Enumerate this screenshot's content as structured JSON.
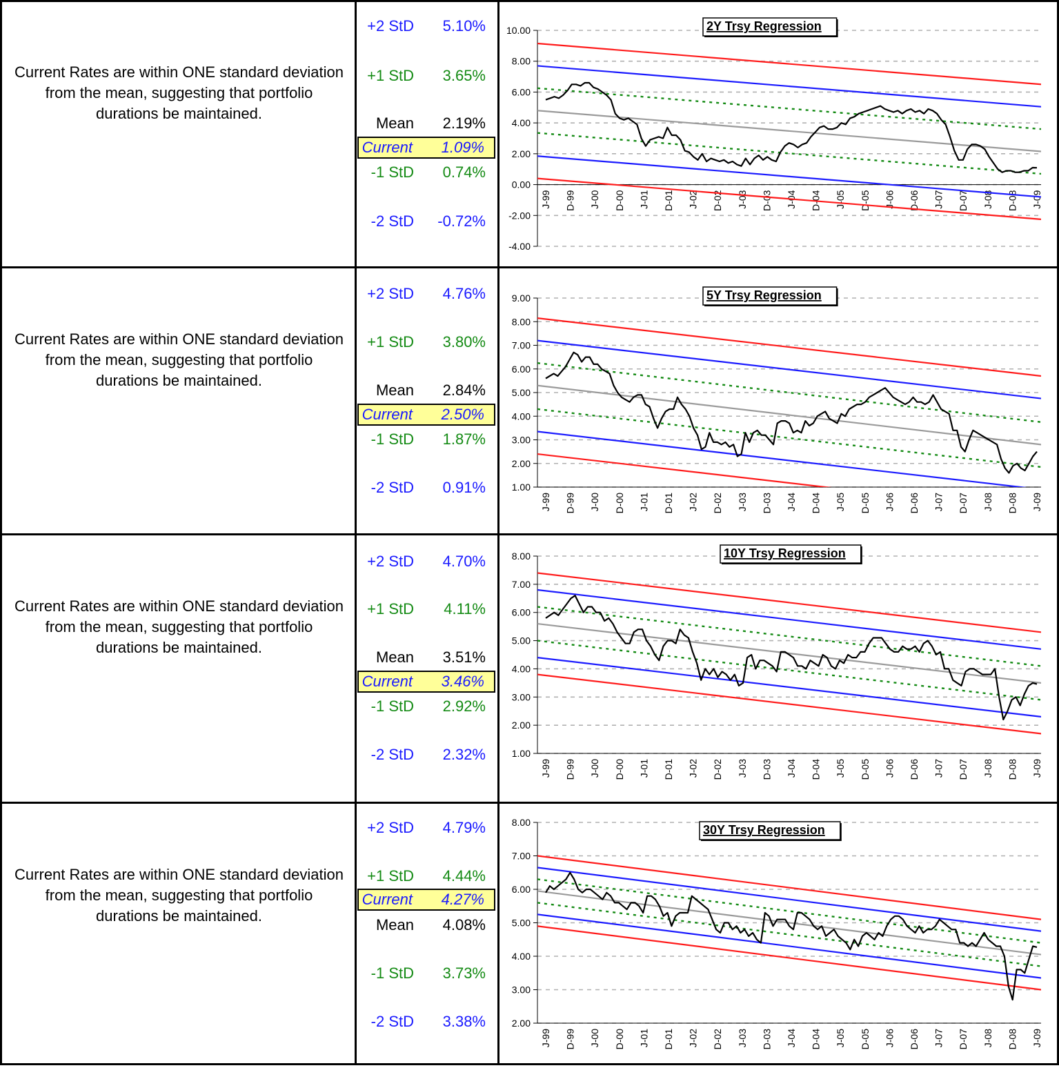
{
  "charts": [
    {
      "comment": "Current Rates are within ONE standard deviation from the mean, suggesting that portfolio durations be maintained.",
      "stats": [
        {
          "label": "+2 StD",
          "value": "5.10%",
          "color": "#1a1aff"
        },
        {
          "label": "+1 StD",
          "value": "3.65%",
          "color": "#138a13"
        },
        {
          "label": "Mean",
          "value": "2.19%",
          "color": "#000000"
        },
        {
          "label": "Current",
          "value": "1.09%",
          "color": "#1a1aff",
          "current": true
        },
        {
          "label": "-1 StD",
          "value": "0.74%",
          "color": "#138a13"
        },
        {
          "label": "-2 StD",
          "value": "-0.72%",
          "color": "#1a1aff"
        }
      ],
      "chart_data": {
        "type": "line",
        "title": "2Y Trsy Regression",
        "ylim": [
          -4,
          10
        ],
        "yticks": [
          "10.00",
          "8.00",
          "6.00",
          "4.00",
          "2.00",
          "0.00",
          "-2.00",
          "-4.00"
        ],
        "xtick_labels": [
          "J-99",
          "D-99",
          "J-00",
          "D-00",
          "J-01",
          "D-01",
          "J-02",
          "D-02",
          "J-03",
          "D-03",
          "J-04",
          "D-04",
          "J-05",
          "D-05",
          "J-06",
          "D-06",
          "J-07",
          "D-07",
          "J-08",
          "D-08",
          "J-09"
        ],
        "x_labels_inside": true,
        "grid": true,
        "bands": {
          "mean": [
            4.8,
            2.15
          ],
          "plus1": [
            6.25,
            3.6
          ],
          "minus1": [
            3.35,
            0.7
          ],
          "plus2": [
            7.7,
            5.05
          ],
          "minus2": [
            1.85,
            -0.8
          ],
          "plus3": [
            9.15,
            6.5
          ],
          "minus3": [
            0.4,
            -2.25
          ]
        },
        "values": [
          5.5,
          5.6,
          5.7,
          5.6,
          5.8,
          6.1,
          6.5,
          6.5,
          6.4,
          6.6,
          6.6,
          6.3,
          6.2,
          6.0,
          5.8,
          5.5,
          4.6,
          4.3,
          4.2,
          4.3,
          4.1,
          3.9,
          3.0,
          2.5,
          2.9,
          3.0,
          3.1,
          3.0,
          3.7,
          3.2,
          3.2,
          2.9,
          2.2,
          2.1,
          1.8,
          1.6,
          2.0,
          1.5,
          1.7,
          1.6,
          1.5,
          1.6,
          1.4,
          1.5,
          1.3,
          1.2,
          1.7,
          1.3,
          1.7,
          1.9,
          1.6,
          1.8,
          1.6,
          1.5,
          2.1,
          2.5,
          2.7,
          2.6,
          2.4,
          2.6,
          2.7,
          3.1,
          3.4,
          3.7,
          3.8,
          3.6,
          3.6,
          3.7,
          4.0,
          3.9,
          4.3,
          4.4,
          4.6,
          4.7,
          4.8,
          4.9,
          5.0,
          5.1,
          4.9,
          4.8,
          4.7,
          4.8,
          4.6,
          4.8,
          4.9,
          4.7,
          4.8,
          4.6,
          4.9,
          4.8,
          4.6,
          4.2,
          3.9,
          3.1,
          2.2,
          1.6,
          1.6,
          2.3,
          2.6,
          2.6,
          2.5,
          2.3,
          1.8,
          1.4,
          1.0,
          0.8,
          0.9,
          0.9,
          0.8,
          0.8,
          0.9,
          0.9,
          1.1,
          1.09
        ]
      }
    },
    {
      "comment": "Current Rates are within ONE standard deviation from the mean, suggesting that portfolio durations be maintained.",
      "stats": [
        {
          "label": "+2 StD",
          "value": "4.76%",
          "color": "#1a1aff"
        },
        {
          "label": "+1 StD",
          "value": "3.80%",
          "color": "#138a13"
        },
        {
          "label": "Mean",
          "value": "2.84%",
          "color": "#000000"
        },
        {
          "label": "Current",
          "value": "2.50%",
          "color": "#1a1aff",
          "current": true
        },
        {
          "label": "-1 StD",
          "value": "1.87%",
          "color": "#138a13"
        },
        {
          "label": "-2 StD",
          "value": "0.91%",
          "color": "#1a1aff"
        }
      ],
      "chart_data": {
        "type": "line",
        "title": "5Y Trsy Regression",
        "ylim": [
          1,
          9
        ],
        "yticks": [
          "9.00",
          "8.00",
          "7.00",
          "6.00",
          "5.00",
          "4.00",
          "3.00",
          "2.00",
          "1.00"
        ],
        "xtick_labels": [
          "J-99",
          "D-99",
          "J-00",
          "D-00",
          "J-01",
          "D-01",
          "J-02",
          "D-02",
          "J-03",
          "D-03",
          "J-04",
          "D-04",
          "J-05",
          "D-05",
          "J-06",
          "D-06",
          "J-07",
          "D-07",
          "J-08",
          "D-08",
          "J-09"
        ],
        "x_labels_inside": false,
        "grid": true,
        "bands": {
          "mean": [
            5.3,
            2.8
          ],
          "plus1": [
            6.25,
            3.75
          ],
          "minus1": [
            4.3,
            1.85
          ],
          "plus2": [
            7.2,
            4.75
          ],
          "minus2": [
            3.35,
            0.9
          ],
          "plus3": [
            8.15,
            5.7
          ],
          "minus3": [
            2.4,
            -0.05
          ]
        },
        "values": [
          5.6,
          5.7,
          5.8,
          5.7,
          5.9,
          6.1,
          6.4,
          6.7,
          6.6,
          6.3,
          6.5,
          6.5,
          6.2,
          6.2,
          6.0,
          5.9,
          5.8,
          5.3,
          5.0,
          4.8,
          4.7,
          4.6,
          4.8,
          4.9,
          4.9,
          4.5,
          4.4,
          3.9,
          3.5,
          3.9,
          4.2,
          4.3,
          4.3,
          4.8,
          4.5,
          4.3,
          4.0,
          3.5,
          3.2,
          2.6,
          2.7,
          3.3,
          2.9,
          2.9,
          2.8,
          2.9,
          2.7,
          2.8,
          2.3,
          2.4,
          3.3,
          2.9,
          3.3,
          3.4,
          3.2,
          3.2,
          3.0,
          2.8,
          3.7,
          3.8,
          3.8,
          3.7,
          3.3,
          3.4,
          3.3,
          3.8,
          3.6,
          3.7,
          4.0,
          4.1,
          4.2,
          3.9,
          3.8,
          3.7,
          4.1,
          4.0,
          4.3,
          4.4,
          4.5,
          4.5,
          4.6,
          4.8,
          4.9,
          5.0,
          5.1,
          5.2,
          5.0,
          4.8,
          4.7,
          4.6,
          4.5,
          4.6,
          4.8,
          4.6,
          4.6,
          4.5,
          4.6,
          4.9,
          4.6,
          4.3,
          4.2,
          4.1,
          3.4,
          3.4,
          2.7,
          2.5,
          3.0,
          3.4,
          3.3,
          3.2,
          3.1,
          3.0,
          2.9,
          2.8,
          2.2,
          1.8,
          1.6,
          1.9,
          2.0,
          1.8,
          1.7,
          2.0,
          2.3,
          2.5
        ]
      }
    },
    {
      "comment": "Current Rates are within ONE standard deviation from the mean, suggesting that portfolio durations be maintained.",
      "stats": [
        {
          "label": "+2 StD",
          "value": "4.70%",
          "color": "#1a1aff"
        },
        {
          "label": "+1 StD",
          "value": "4.11%",
          "color": "#138a13"
        },
        {
          "label": "Mean",
          "value": "3.51%",
          "color": "#000000"
        },
        {
          "label": "Current",
          "value": "3.46%",
          "color": "#1a1aff",
          "current": true
        },
        {
          "label": "-1 StD",
          "value": "2.92%",
          "color": "#138a13"
        },
        {
          "label": "-2 StD",
          "value": "2.32%",
          "color": "#1a1aff"
        }
      ],
      "chart_data": {
        "type": "line",
        "title": "10Y Trsy Regression",
        "ylim": [
          1,
          8
        ],
        "yticks": [
          "8.00",
          "7.00",
          "6.00",
          "5.00",
          "4.00",
          "3.00",
          "2.00",
          "1.00"
        ],
        "xtick_labels": [
          "J-99",
          "D-99",
          "J-00",
          "D-00",
          "J-01",
          "D-01",
          "J-02",
          "D-02",
          "J-03",
          "D-03",
          "J-04",
          "D-04",
          "J-05",
          "D-05",
          "J-06",
          "D-06",
          "J-07",
          "D-07",
          "J-08",
          "D-08",
          "J-09"
        ],
        "x_labels_inside": false,
        "grid": true,
        "bands": {
          "mean": [
            5.6,
            3.5
          ],
          "plus1": [
            6.2,
            4.1
          ],
          "minus1": [
            5.0,
            2.9
          ],
          "plus2": [
            6.8,
            4.7
          ],
          "minus2": [
            4.4,
            2.3
          ],
          "plus3": [
            7.4,
            5.3
          ],
          "minus3": [
            3.8,
            1.7
          ]
        },
        "values": [
          5.8,
          5.9,
          6.0,
          5.9,
          6.1,
          6.3,
          6.5,
          6.6,
          6.3,
          6.0,
          6.2,
          6.2,
          6.0,
          6.0,
          5.7,
          5.8,
          5.6,
          5.3,
          5.1,
          4.9,
          4.9,
          5.3,
          5.4,
          5.4,
          5.0,
          4.8,
          4.5,
          4.3,
          4.8,
          5.0,
          5.0,
          4.9,
          5.4,
          5.2,
          5.1,
          4.6,
          4.2,
          3.6,
          4.0,
          3.8,
          4.0,
          3.7,
          3.9,
          3.8,
          3.6,
          3.8,
          3.4,
          3.5,
          4.4,
          4.5,
          4.0,
          4.3,
          4.3,
          4.2,
          4.1,
          3.9,
          4.6,
          4.6,
          4.5,
          4.4,
          4.1,
          4.1,
          4.0,
          4.3,
          4.2,
          4.1,
          4.5,
          4.4,
          4.1,
          4.0,
          4.3,
          4.2,
          4.5,
          4.4,
          4.4,
          4.6,
          4.6,
          4.9,
          5.1,
          5.1,
          5.1,
          4.9,
          4.7,
          4.6,
          4.6,
          4.8,
          4.7,
          4.7,
          4.8,
          4.6,
          4.9,
          5.0,
          4.8,
          4.5,
          4.6,
          4.0,
          4.0,
          3.6,
          3.5,
          3.4,
          3.9,
          4.0,
          4.0,
          3.9,
          3.8,
          3.8,
          3.8,
          4.0,
          3.0,
          2.2,
          2.5,
          2.9,
          3.0,
          2.7,
          3.1,
          3.4,
          3.5,
          3.46
        ]
      }
    },
    {
      "comment": "Current Rates are within ONE standard deviation from the mean, suggesting that portfolio durations be maintained.",
      "stats": [
        {
          "label": "+2 StD",
          "value": "4.79%",
          "color": "#1a1aff"
        },
        {
          "label": "+1 StD",
          "value": "4.44%",
          "color": "#138a13"
        },
        {
          "label": "Current",
          "value": "4.27%",
          "color": "#1a1aff",
          "current": true
        },
        {
          "label": "Mean",
          "value": "4.08%",
          "color": "#000000"
        },
        {
          "label": "-1 StD",
          "value": "3.73%",
          "color": "#138a13"
        },
        {
          "label": "-2 StD",
          "value": "3.38%",
          "color": "#1a1aff"
        }
      ],
      "chart_data": {
        "type": "line",
        "title": "30Y Trsy Regression",
        "ylim": [
          2,
          8
        ],
        "yticks": [
          "8.00",
          "7.00",
          "6.00",
          "5.00",
          "4.00",
          "3.00",
          "2.00"
        ],
        "xtick_labels": [
          "J-99",
          "D-99",
          "J-00",
          "D-00",
          "J-01",
          "D-01",
          "J-02",
          "D-02",
          "J-03",
          "D-03",
          "J-04",
          "D-04",
          "J-05",
          "D-05",
          "J-06",
          "D-06",
          "J-07",
          "D-07",
          "J-08",
          "D-08",
          "J-09"
        ],
        "x_labels_inside": false,
        "grid": true,
        "bands": {
          "mean": [
            5.95,
            4.05
          ],
          "plus1": [
            6.3,
            4.4
          ],
          "minus1": [
            5.6,
            3.7
          ],
          "plus2": [
            6.65,
            4.75
          ],
          "minus2": [
            5.25,
            3.35
          ],
          "plus3": [
            7.0,
            5.1
          ],
          "minus3": [
            4.9,
            3.0
          ]
        },
        "values": [
          5.9,
          6.1,
          6.0,
          6.1,
          6.2,
          6.3,
          6.5,
          6.3,
          6.0,
          5.9,
          6.0,
          6.0,
          5.9,
          5.8,
          5.7,
          5.9,
          5.8,
          5.6,
          5.6,
          5.5,
          5.4,
          5.6,
          5.6,
          5.5,
          5.3,
          5.8,
          5.8,
          5.7,
          5.5,
          5.2,
          5.3,
          4.9,
          5.2,
          5.3,
          5.3,
          5.3,
          5.8,
          5.7,
          5.6,
          5.5,
          5.4,
          5.1,
          4.8,
          4.7,
          5.0,
          5.0,
          4.8,
          4.9,
          4.7,
          4.8,
          4.6,
          4.7,
          4.5,
          4.4,
          5.3,
          5.2,
          4.9,
          5.1,
          5.1,
          5.1,
          4.9,
          4.8,
          5.3,
          5.3,
          5.2,
          5.1,
          4.9,
          4.8,
          4.9,
          4.6,
          4.7,
          4.8,
          4.6,
          4.5,
          4.4,
          4.2,
          4.5,
          4.3,
          4.6,
          4.7,
          4.6,
          4.5,
          4.7,
          4.6,
          4.9,
          5.1,
          5.2,
          5.2,
          5.1,
          4.9,
          4.8,
          4.7,
          4.9,
          4.7,
          4.8,
          4.8,
          4.9,
          5.1,
          5.0,
          4.9,
          4.8,
          4.8,
          4.4,
          4.4,
          4.3,
          4.4,
          4.3,
          4.5,
          4.7,
          4.5,
          4.4,
          4.3,
          4.3,
          4.0,
          3.1,
          2.7,
          3.6,
          3.6,
          3.5,
          3.9,
          4.3,
          4.27
        ]
      }
    }
  ]
}
